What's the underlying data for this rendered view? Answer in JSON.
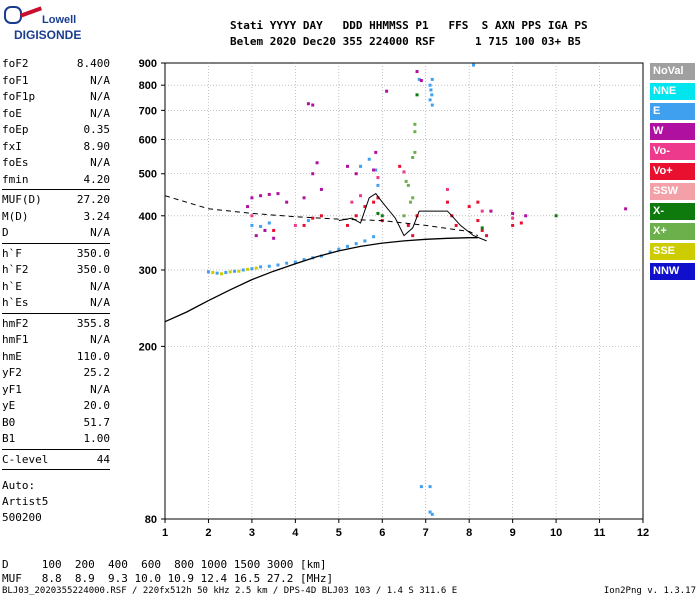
{
  "logo": {
    "line1": "Lowell",
    "line2": "DIGISONDE"
  },
  "header": {
    "line1": "Stati YYYY DAY   DDD HHMMSS P1   FFS  S AXN PPS IGA PS",
    "line2": "Belem 2020 Dec20 355 224000 RSF      1 715 100 03+ B5"
  },
  "params": [
    {
      "name": "foF2",
      "value": "8.400"
    },
    {
      "name": "foF1",
      "value": "N/A"
    },
    {
      "name": "foF1p",
      "value": "N/A"
    },
    {
      "name": "foE",
      "value": "N/A"
    },
    {
      "name": "foEp",
      "value": "0.35"
    },
    {
      "name": "fxI",
      "value": "8.90"
    },
    {
      "name": "foEs",
      "value": "N/A"
    },
    {
      "name": "fmin",
      "value": "4.20"
    },
    {
      "sep": true
    },
    {
      "name": "MUF(D)",
      "value": "27.20"
    },
    {
      "name": "M(D)",
      "value": "3.24"
    },
    {
      "name": "D",
      "value": "N/A"
    },
    {
      "sep": true
    },
    {
      "name": "h`F",
      "value": "350.0"
    },
    {
      "name": "h`F2",
      "value": "350.0"
    },
    {
      "name": "h`E",
      "value": "N/A"
    },
    {
      "name": "h`Es",
      "value": "N/A"
    },
    {
      "sep": true
    },
    {
      "name": "hmF2",
      "value": "355.8"
    },
    {
      "name": "hmF1",
      "value": "N/A"
    },
    {
      "name": "hmE",
      "value": "110.0"
    },
    {
      "name": "yF2",
      "value": "25.2"
    },
    {
      "name": "yF1",
      "value": "N/A"
    },
    {
      "name": "yE",
      "value": "20.0"
    },
    {
      "name": "B0",
      "value": "51.7"
    },
    {
      "name": "B1",
      "value": "1.00"
    },
    {
      "sep": true
    },
    {
      "name": "C-level",
      "value": "44"
    },
    {
      "sep": true
    }
  ],
  "auto": {
    "line1": "Auto:",
    "line2": "Artist5",
    "line3": "500200"
  },
  "muf_table": {
    "line1": "D     100  200  400  600  800 1000 1500 3000 [km]",
    "line2": "MUF   8.8  8.9  9.3 10.0 10.9 12.4 16.5 27.2 [MHz]"
  },
  "footer": "BLJ03_2020355224000.RSF / 220fx512h 50 kHz 2.5 km / DPS-4D BLJ03 103 / 1.4 S 311.6 E",
  "version": "Ion2Png v. 1.3.17",
  "legend": [
    {
      "label": "NoVal",
      "color": "#a0a0a0"
    },
    {
      "label": "NNE",
      "color": "#00e5ee"
    },
    {
      "label": "E",
      "color": "#3fa0f0"
    },
    {
      "label": "W",
      "color": "#b0109f"
    },
    {
      "label": "Vo-",
      "color": "#ee3a8c"
    },
    {
      "label": "Vo+",
      "color": "#e8102e"
    },
    {
      "label": "SSW",
      "color": "#f4a0a8"
    },
    {
      "label": "X-",
      "color": "#0e7a0e"
    },
    {
      "label": "X+",
      "color": "#6cb04c"
    },
    {
      "label": "SSE",
      "color": "#cccc00"
    },
    {
      "label": "NNW",
      "color": "#1010cc"
    }
  ],
  "chart_data": {
    "type": "scatter",
    "xlim": [
      1,
      12
    ],
    "ylim": [
      80,
      900
    ],
    "x_ticks": [
      1,
      2,
      3,
      4,
      5,
      6,
      7,
      8,
      9,
      10,
      11,
      12
    ],
    "y_ticks": [
      80,
      200,
      300,
      400,
      500,
      600,
      700,
      800,
      900
    ],
    "y_scale": "log",
    "grid": true,
    "solid_profile": {
      "x": [
        1,
        1.5,
        2,
        2.5,
        3,
        3.5,
        4,
        4.5,
        5,
        5.5,
        6,
        6.5,
        7,
        7.5,
        8,
        8.2
      ],
      "y": [
        228,
        240,
        255,
        270,
        285,
        298,
        310,
        322,
        332,
        340,
        346,
        350,
        353,
        355,
        356,
        356
      ]
    },
    "dashed_profile": {
      "x": [
        1,
        2,
        3,
        4,
        5,
        6,
        7,
        8,
        8.2
      ],
      "y": [
        445,
        415,
        405,
        398,
        393,
        390,
        380,
        368,
        360
      ]
    },
    "trace_line": {
      "x": [
        5.0,
        5.3,
        5.5,
        5.7,
        5.85,
        6.0,
        6.3,
        6.5,
        6.7,
        6.85,
        7.5,
        7.8,
        8.1,
        8.4
      ],
      "y": [
        390,
        395,
        385,
        440,
        450,
        430,
        395,
        360,
        375,
        410,
        410,
        380,
        360,
        350
      ]
    },
    "echo_series": [
      {
        "color": "#3fa0f0",
        "points": [
          [
            2.0,
            297
          ],
          [
            2.2,
            295
          ],
          [
            2.4,
            296
          ],
          [
            2.6,
            298
          ],
          [
            2.8,
            300
          ],
          [
            3.0,
            302
          ],
          [
            3.2,
            305
          ],
          [
            3.4,
            306
          ],
          [
            3.6,
            308
          ],
          [
            3.8,
            311
          ],
          [
            4.0,
            313
          ],
          [
            4.2,
            317
          ],
          [
            4.4,
            320
          ],
          [
            4.6,
            323
          ],
          [
            4.8,
            330
          ],
          [
            5.0,
            335
          ],
          [
            5.2,
            340
          ],
          [
            5.4,
            345
          ],
          [
            5.6,
            350
          ],
          [
            5.8,
            358
          ],
          [
            3.0,
            380
          ],
          [
            3.2,
            378
          ],
          [
            3.4,
            385
          ],
          [
            4.3,
            390
          ],
          [
            5.5,
            520
          ],
          [
            5.7,
            540
          ],
          [
            7.1,
            800
          ],
          [
            7.12,
            780
          ],
          [
            7.14,
            760
          ],
          [
            7.1,
            740
          ],
          [
            7.15,
            720
          ],
          [
            6.85,
            825
          ],
          [
            7.15,
            825
          ],
          [
            8.1,
            890
          ],
          [
            7.1,
            83
          ],
          [
            7.15,
            82
          ],
          [
            6.9,
            95
          ],
          [
            7.1,
            95
          ],
          [
            5.9,
            470
          ],
          [
            5.85,
            510
          ]
        ]
      },
      {
        "color": "#cccc00",
        "points": [
          [
            2.1,
            296
          ],
          [
            2.3,
            294
          ],
          [
            2.5,
            297
          ],
          [
            2.7,
            298
          ],
          [
            2.9,
            301
          ],
          [
            3.1,
            303
          ]
        ]
      },
      {
        "color": "#b0109f",
        "points": [
          [
            3.0,
            440
          ],
          [
            3.2,
            445
          ],
          [
            3.4,
            448
          ],
          [
            3.6,
            450
          ],
          [
            3.8,
            430
          ],
          [
            4.3,
            725
          ],
          [
            4.4,
            720
          ],
          [
            4.5,
            530
          ],
          [
            4.4,
            500
          ],
          [
            5.2,
            520
          ],
          [
            5.4,
            500
          ],
          [
            5.8,
            510
          ],
          [
            5.85,
            560
          ],
          [
            6.8,
            860
          ],
          [
            6.1,
            775
          ],
          [
            6.9,
            820
          ],
          [
            9.0,
            405
          ],
          [
            9.3,
            400
          ],
          [
            8.5,
            410
          ],
          [
            11.6,
            415
          ],
          [
            3.1,
            360
          ],
          [
            3.3,
            370
          ],
          [
            3.5,
            355
          ],
          [
            2.9,
            420
          ],
          [
            4.2,
            440
          ],
          [
            4.6,
            460
          ]
        ]
      },
      {
        "color": "#e8102e",
        "points": [
          [
            5.8,
            430
          ],
          [
            5.9,
            440
          ],
          [
            6.0,
            390
          ],
          [
            6.4,
            520
          ],
          [
            6.6,
            380
          ],
          [
            6.7,
            360
          ],
          [
            6.8,
            400
          ],
          [
            7.5,
            430
          ],
          [
            7.6,
            400
          ],
          [
            7.7,
            380
          ],
          [
            8.2,
            390
          ],
          [
            8.3,
            370
          ],
          [
            8.4,
            360
          ],
          [
            8.0,
            420
          ],
          [
            8.2,
            430
          ],
          [
            9.0,
            380
          ],
          [
            9.2,
            385
          ],
          [
            5.2,
            380
          ],
          [
            5.4,
            400
          ],
          [
            5.6,
            420
          ],
          [
            4.2,
            380
          ],
          [
            4.4,
            395
          ],
          [
            4.6,
            400
          ],
          [
            3.5,
            370
          ]
        ]
      },
      {
        "color": "#ee3a8c",
        "points": [
          [
            5.3,
            430
          ],
          [
            5.5,
            445
          ],
          [
            5.9,
            490
          ],
          [
            6.5,
            505
          ],
          [
            7.5,
            460
          ],
          [
            8.3,
            410
          ],
          [
            9.0,
            395
          ],
          [
            4.0,
            380
          ],
          [
            3.0,
            400
          ]
        ]
      },
      {
        "color": "#6cb04c",
        "points": [
          [
            6.75,
            650
          ],
          [
            6.75,
            625
          ],
          [
            6.75,
            560
          ],
          [
            6.7,
            545
          ],
          [
            6.55,
            480
          ],
          [
            6.6,
            470
          ],
          [
            6.65,
            430
          ],
          [
            6.7,
            440
          ],
          [
            6.5,
            400
          ]
        ]
      },
      {
        "color": "#0e7a0e",
        "points": [
          [
            6.8,
            760
          ],
          [
            5.9,
            405
          ],
          [
            6.0,
            400
          ],
          [
            10.0,
            400
          ],
          [
            8.3,
            375
          ]
        ]
      }
    ]
  }
}
